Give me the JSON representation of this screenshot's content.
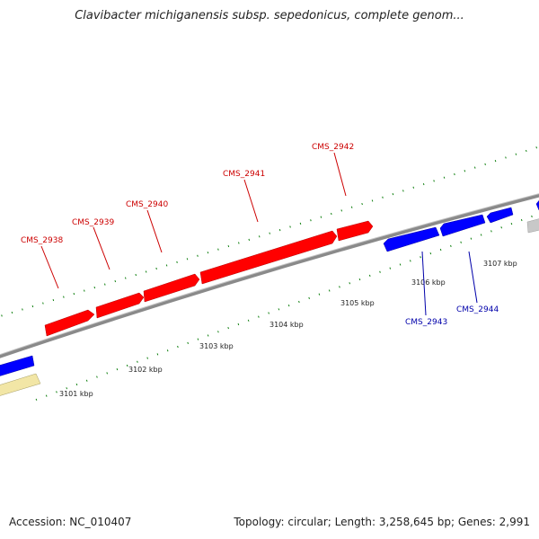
{
  "title": "Clavibacter michiganensis subsp. sepedonicus, complete genom...",
  "footer": {
    "accession": "Accession: NC_010407",
    "summary": "Topology: circular; Length: 3,258,645 bp; Genes: 2,991"
  },
  "colors": {
    "forward_gene": "#ff0000",
    "reverse_gene": "#0000ff",
    "other_gene_gray": "#c8c8c8",
    "other_gene_yellow": "#f2e6a6",
    "backbone": "#888888",
    "tick": "#007f00",
    "forward_label": "#cc0000",
    "reverse_label": "#0000aa"
  },
  "ticks": [
    "3101 kbp",
    "3102 kbp",
    "3103 kbp",
    "3104 kbp",
    "3105 kbp",
    "3106 kbp",
    "3107 kbp"
  ],
  "genes": [
    {
      "id": "CMS_2938",
      "strand": "forward"
    },
    {
      "id": "CMS_2939",
      "strand": "forward"
    },
    {
      "id": "CMS_2940",
      "strand": "forward"
    },
    {
      "id": "CMS_2941",
      "strand": "forward"
    },
    {
      "id": "CMS_2942",
      "strand": "forward"
    },
    {
      "id": "CMS_2943",
      "strand": "reverse"
    },
    {
      "id": "CMS_2944",
      "strand": "reverse"
    }
  ]
}
